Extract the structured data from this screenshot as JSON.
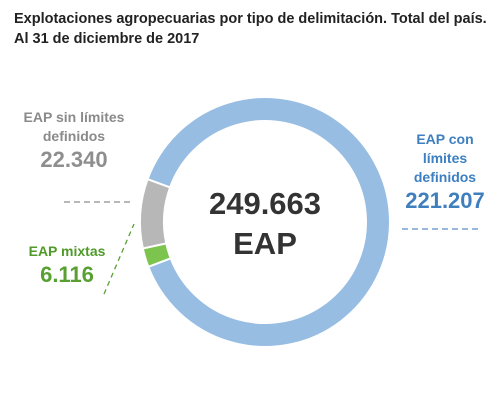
{
  "title_line1": "Explotaciones agropecuarias por tipo de delimitación. Total del país.",
  "title_line2": "Al 31 de diciembre de 2017",
  "center": {
    "total": "249.663",
    "unit": "EAP"
  },
  "callouts": {
    "sin_limites": {
      "label_line1": "EAP sin límites",
      "label_line2": "definidos",
      "value": "22.340"
    },
    "mixtas": {
      "label": "EAP mixtas",
      "value": "6.116"
    },
    "con_limites": {
      "label_line1": "EAP con",
      "label_line2": "límites",
      "label_line3": "definidos",
      "value": "221.207"
    }
  },
  "colors": {
    "con_limites": "#98bde3",
    "sin_limites": "#b7b7b7",
    "mixtas": "#7dc44f",
    "text_dark": "#333333"
  },
  "chart_data": {
    "type": "pie",
    "donut": true,
    "title": "Explotaciones agropecuarias por tipo de delimitación. Total del país. Al 31 de diciembre de 2017",
    "total": 249663,
    "slices": [
      {
        "name": "EAP con límites definidos",
        "value": 221207,
        "color": "#98bde3"
      },
      {
        "name": "EAP mixtas",
        "value": 6116,
        "color": "#7dc44f"
      },
      {
        "name": "EAP sin límites definidos",
        "value": 22340,
        "color": "#b7b7b7"
      }
    ]
  }
}
